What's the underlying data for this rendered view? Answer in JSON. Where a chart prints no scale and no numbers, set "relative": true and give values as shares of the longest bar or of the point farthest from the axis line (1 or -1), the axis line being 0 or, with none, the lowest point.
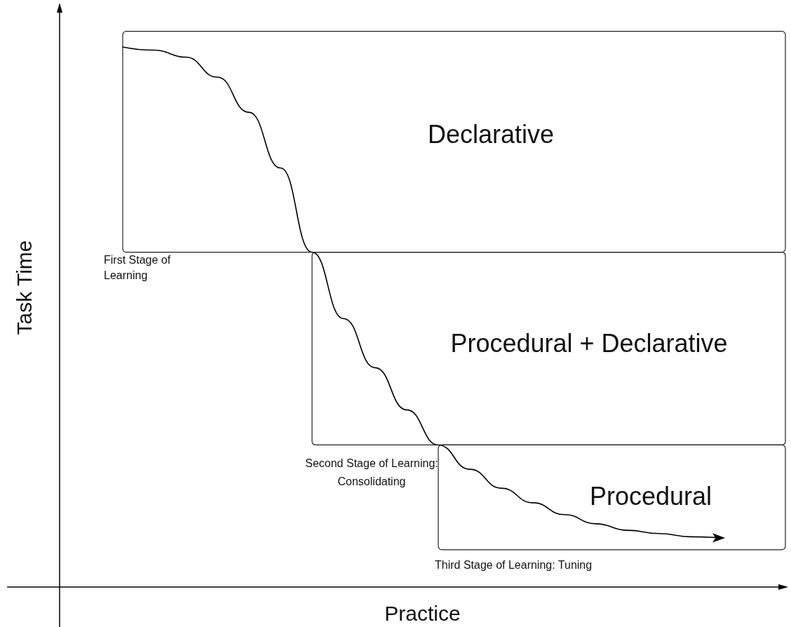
{
  "chart_data": {
    "type": "line",
    "relative": true,
    "xlabel": "Practice",
    "ylabel": "Task Time",
    "categories": [
      null,
      null,
      null,
      null,
      null,
      null,
      null,
      null,
      null,
      null,
      null,
      null,
      null,
      null,
      null,
      null,
      null,
      null,
      null,
      null,
      null,
      null,
      null,
      null
    ],
    "series": [
      {
        "color": "#000000",
        "values": [
          null,
          null,
          1.0,
          0.994,
          0.981,
          0.944,
          0.879,
          0.776,
          0.62,
          0.497,
          0.406,
          0.328,
          0.263,
          0.218,
          0.183,
          0.156,
          0.134,
          0.117,
          0.105,
          0.099,
          0.093,
          0.091,
          null,
          null
        ]
      }
    ],
    "marker": "none",
    "line_style": "solid",
    "grid": false,
    "annotations": [
      "Declarative",
      "Procedural + Declarative",
      "Procedural",
      "First Stage of Learning",
      "Second Stage of Learning: Consolidating",
      "Third Stage of Learning: Tuning"
    ]
  }
}
